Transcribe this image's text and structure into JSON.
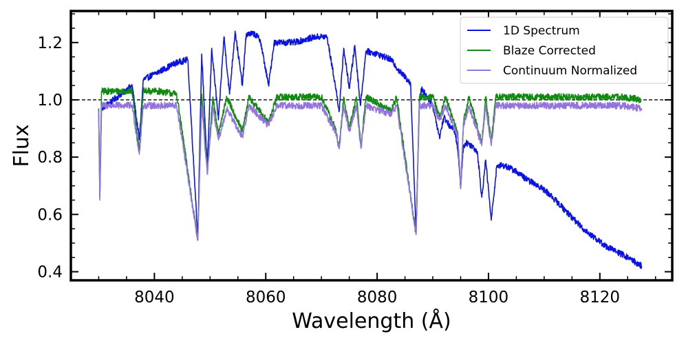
{
  "chart_data": {
    "type": "line",
    "xlabel": "Wavelength (Å)",
    "ylabel": "Flux",
    "xlim": [
      8025,
      8133
    ],
    "ylim": [
      0.37,
      1.31
    ],
    "x_ticks": [
      8040,
      8060,
      8080,
      8100,
      8120
    ],
    "x_tick_labels": [
      "8040",
      "8060",
      "8080",
      "8100",
      "8120"
    ],
    "y_ticks": [
      0.4,
      0.6,
      0.8,
      1.0,
      1.2
    ],
    "y_tick_labels": [
      "0.4",
      "0.6",
      "0.8",
      "1.0",
      "1.2"
    ],
    "reference_line": {
      "y": 1.0,
      "style": "dashed",
      "color": "#000000"
    },
    "legend_position": "top-right",
    "series": [
      {
        "name": "1D Spectrum",
        "color": "#0a12e6",
        "points": [
          [
            8030.0,
            0.95
          ],
          [
            8030.2,
            0.66
          ],
          [
            8030.5,
            0.97
          ],
          [
            8032,
            0.99
          ],
          [
            8034,
            1.02
          ],
          [
            8036,
            1.05
          ],
          [
            8037.3,
            0.86
          ],
          [
            8038,
            1.07
          ],
          [
            8040,
            1.09
          ],
          [
            8042,
            1.11
          ],
          [
            8044,
            1.13
          ],
          [
            8046,
            1.14
          ],
          [
            8047.8,
            0.52
          ],
          [
            8048.5,
            1.16
          ],
          [
            8049.5,
            0.76
          ],
          [
            8050.3,
            1.18
          ],
          [
            8051.5,
            0.93
          ],
          [
            8052.5,
            1.22
          ],
          [
            8053.5,
            1.02
          ],
          [
            8054.5,
            1.24
          ],
          [
            8055.8,
            1.05
          ],
          [
            8056.5,
            1.23
          ],
          [
            8058,
            1.23
          ],
          [
            8059,
            1.21
          ],
          [
            8060.5,
            1.05
          ],
          [
            8061.5,
            1.2
          ],
          [
            8063,
            1.2
          ],
          [
            8065,
            1.2
          ],
          [
            8067,
            1.21
          ],
          [
            8069,
            1.22
          ],
          [
            8071,
            1.22
          ],
          [
            8072.5,
            1.05
          ],
          [
            8073.2,
            0.96
          ],
          [
            8074,
            1.18
          ],
          [
            8075,
            1.04
          ],
          [
            8076,
            1.19
          ],
          [
            8077,
            0.98
          ],
          [
            8078,
            1.17
          ],
          [
            8080,
            1.16
          ],
          [
            8082.5,
            1.14
          ],
          [
            8084,
            1.1
          ],
          [
            8086,
            1.06
          ],
          [
            8087.0,
            0.54
          ],
          [
            8087.6,
            1.0
          ],
          [
            8088,
            1.04
          ],
          [
            8090,
            0.98
          ],
          [
            8091.2,
            0.87
          ],
          [
            8092,
            0.94
          ],
          [
            8093,
            0.91
          ],
          [
            8094,
            0.89
          ],
          [
            8094.5,
            0.82
          ],
          [
            8095,
            0.7
          ],
          [
            8095.5,
            0.84
          ],
          [
            8096,
            0.85
          ],
          [
            8097,
            0.84
          ],
          [
            8098,
            0.82
          ],
          [
            8098.8,
            0.66
          ],
          [
            8099.5,
            0.79
          ],
          [
            8100.5,
            0.58
          ],
          [
            8101.5,
            0.77
          ],
          [
            8103,
            0.77
          ],
          [
            8105,
            0.75
          ],
          [
            8107,
            0.72
          ],
          [
            8109,
            0.7
          ],
          [
            8111,
            0.67
          ],
          [
            8113,
            0.63
          ],
          [
            8115,
            0.59
          ],
          [
            8117,
            0.55
          ],
          [
            8119,
            0.52
          ],
          [
            8121,
            0.49
          ],
          [
            8123,
            0.47
          ],
          [
            8125,
            0.45
          ],
          [
            8127.5,
            0.42
          ]
        ]
      },
      {
        "name": "Blaze Corrected",
        "color": "#118a11",
        "points": [
          [
            8030.0,
            0.97
          ],
          [
            8030.2,
            0.66
          ],
          [
            8030.5,
            1.03
          ],
          [
            8033,
            1.03
          ],
          [
            8036,
            1.03
          ],
          [
            8037.3,
            0.82
          ],
          [
            8038,
            1.03
          ],
          [
            8041,
            1.03
          ],
          [
            8044,
            1.02
          ],
          [
            8047.8,
            0.51
          ],
          [
            8048.5,
            1.02
          ],
          [
            8049.5,
            0.75
          ],
          [
            8050.5,
            1.01
          ],
          [
            8051.5,
            0.88
          ],
          [
            8053,
            1.01
          ],
          [
            8055.8,
            0.89
          ],
          [
            8057,
            1.01
          ],
          [
            8060.5,
            0.92
          ],
          [
            8062,
            1.01
          ],
          [
            8066,
            1.01
          ],
          [
            8070,
            1.01
          ],
          [
            8072.5,
            0.9
          ],
          [
            8073.2,
            0.83
          ],
          [
            8074,
            1.01
          ],
          [
            8075,
            0.9
          ],
          [
            8076.3,
            1.01
          ],
          [
            8077.1,
            0.84
          ],
          [
            8078,
            1.01
          ],
          [
            8082.5,
            0.96
          ],
          [
            8083.5,
            1.01
          ],
          [
            8087.0,
            0.53
          ],
          [
            8087.6,
            1.01
          ],
          [
            8090,
            1.01
          ],
          [
            8091.2,
            0.94
          ],
          [
            8092.3,
            1.01
          ],
          [
            8094.5,
            0.88
          ],
          [
            8095,
            0.69
          ],
          [
            8095.5,
            0.92
          ],
          [
            8096.5,
            1.01
          ],
          [
            8098.8,
            0.85
          ],
          [
            8099.5,
            1.01
          ],
          [
            8100.5,
            0.85
          ],
          [
            8101.3,
            1.01
          ],
          [
            8105,
            1.01
          ],
          [
            8110,
            1.01
          ],
          [
            8115,
            1.01
          ],
          [
            8120,
            1.01
          ],
          [
            8124,
            1.01
          ],
          [
            8127.5,
            1.0
          ]
        ]
      },
      {
        "name": "Continuum Normalized",
        "color": "#9373e0",
        "points": [
          [
            8030.0,
            0.96
          ],
          [
            8030.2,
            0.65
          ],
          [
            8030.5,
            0.98
          ],
          [
            8033,
            0.98
          ],
          [
            8036,
            0.98
          ],
          [
            8037.3,
            0.81
          ],
          [
            8038,
            0.98
          ],
          [
            8041,
            0.98
          ],
          [
            8044,
            0.98
          ],
          [
            8047.8,
            0.51
          ],
          [
            8048.5,
            0.98
          ],
          [
            8049.5,
            0.74
          ],
          [
            8050.5,
            0.97
          ],
          [
            8051.5,
            0.86
          ],
          [
            8053,
            0.97
          ],
          [
            8055.8,
            0.87
          ],
          [
            8057,
            0.98
          ],
          [
            8060.5,
            0.91
          ],
          [
            8062,
            0.98
          ],
          [
            8066,
            0.98
          ],
          [
            8070,
            0.98
          ],
          [
            8072.5,
            0.89
          ],
          [
            8073.2,
            0.83
          ],
          [
            8074,
            0.98
          ],
          [
            8075,
            0.89
          ],
          [
            8076.3,
            0.98
          ],
          [
            8077.1,
            0.83
          ],
          [
            8078,
            0.98
          ],
          [
            8082.5,
            0.95
          ],
          [
            8083.5,
            0.98
          ],
          [
            8087.0,
            0.53
          ],
          [
            8087.6,
            0.98
          ],
          [
            8090,
            0.98
          ],
          [
            8091.2,
            0.93
          ],
          [
            8092.3,
            0.98
          ],
          [
            8094.5,
            0.87
          ],
          [
            8095,
            0.69
          ],
          [
            8095.5,
            0.91
          ],
          [
            8096.5,
            0.98
          ],
          [
            8098.8,
            0.84
          ],
          [
            8099.5,
            0.98
          ],
          [
            8100.5,
            0.84
          ],
          [
            8101.3,
            0.98
          ],
          [
            8105,
            0.98
          ],
          [
            8110,
            0.98
          ],
          [
            8115,
            0.98
          ],
          [
            8120,
            0.98
          ],
          [
            8124,
            0.98
          ],
          [
            8127.5,
            0.97
          ]
        ]
      }
    ]
  }
}
